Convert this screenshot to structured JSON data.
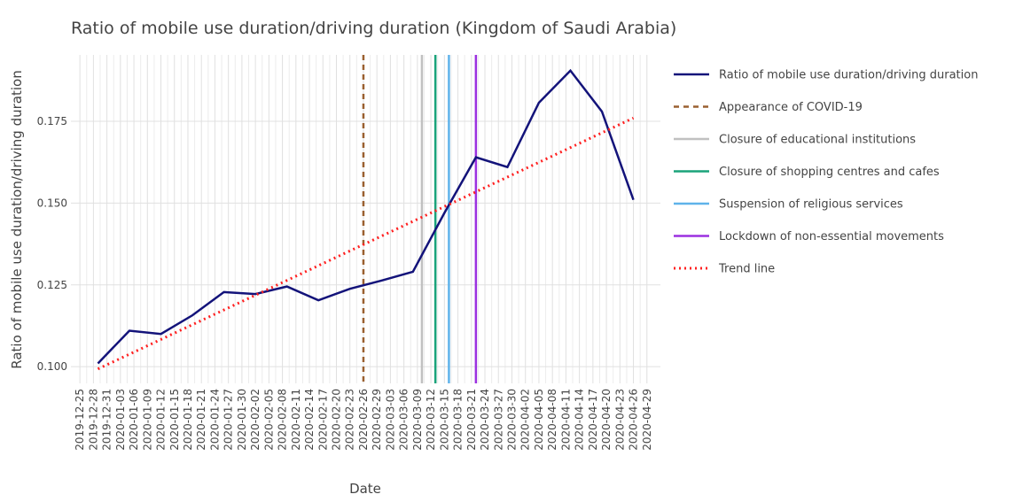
{
  "chart_data": {
    "type": "line",
    "title": "Ratio of mobile use duration/driving duration (Kingdom of Saudi Arabia)",
    "x_label": "Date",
    "y_label": "Ratio of mobile use duration/driving duration",
    "x": [
      "2019-12-29",
      "2020-01-05",
      "2020-01-12",
      "2020-01-19",
      "2020-01-26",
      "2020-02-02",
      "2020-02-09",
      "2020-02-16",
      "2020-02-23",
      "2020-03-01",
      "2020-03-08",
      "2020-03-15",
      "2020-03-22",
      "2020-03-29",
      "2020-04-05",
      "2020-04-12",
      "2020-04-19",
      "2020-04-26"
    ],
    "series": [
      {
        "name": "Ratio of mobile use duration/driving duration",
        "color": "#13137a",
        "dash": "solid",
        "values": [
          0.101,
          0.111,
          0.11,
          0.1157,
          0.1228,
          0.1222,
          0.1245,
          0.1203,
          0.1238,
          0.1263,
          0.129,
          0.147,
          0.164,
          0.161,
          0.1807,
          0.1905,
          0.178,
          0.151
        ]
      },
      {
        "name": "Trend line",
        "color": "#ff2020",
        "dash": "dot",
        "x": [
          "2019-12-29",
          "2020-04-26"
        ],
        "values": [
          0.0993,
          0.176
        ]
      }
    ],
    "events": [
      {
        "name": "Appearance of COVID-19",
        "x": "2020-02-26",
        "color": "#9a6030",
        "dash": "dash"
      },
      {
        "name": "Closure of educational institutions",
        "x": "2020-03-10",
        "color": "#c0c0c0",
        "dash": "solid"
      },
      {
        "name": "Closure of shopping centres and cafes",
        "x": "2020-03-13",
        "color": "#1aa37a",
        "dash": "solid"
      },
      {
        "name": "Suspension of religious services",
        "x": "2020-03-16",
        "color": "#5fb3ea",
        "dash": "solid"
      },
      {
        "name": "Lockdown of non-essential movements",
        "x": "2020-03-22",
        "color": "#9b30e0",
        "dash": "solid"
      }
    ],
    "legend_order": [
      "series.0",
      "events.0",
      "events.1",
      "events.2",
      "events.3",
      "events.4",
      "series.1"
    ],
    "xlim": [
      "2019-12-23",
      "2020-05-02"
    ],
    "xticks": [
      "2019-12-25",
      "2019-12-28",
      "2019-12-31",
      "2020-01-03",
      "2020-01-06",
      "2020-01-09",
      "2020-01-12",
      "2020-01-15",
      "2020-01-18",
      "2020-01-21",
      "2020-01-24",
      "2020-01-27",
      "2020-01-30",
      "2020-02-02",
      "2020-02-05",
      "2020-02-08",
      "2020-02-11",
      "2020-02-14",
      "2020-02-17",
      "2020-02-20",
      "2020-02-23",
      "2020-02-26",
      "2020-02-29",
      "2020-03-03",
      "2020-03-06",
      "2020-03-09",
      "2020-03-12",
      "2020-03-15",
      "2020-03-18",
      "2020-03-21",
      "2020-03-24",
      "2020-03-27",
      "2020-03-30",
      "2020-04-02",
      "2020-04-05",
      "2020-04-08",
      "2020-04-11",
      "2020-04-14",
      "2020-04-17",
      "2020-04-20",
      "2020-04-23",
      "2020-04-26",
      "2020-04-29"
    ],
    "ylim": [
      0.0949,
      0.1953
    ],
    "yticks": [
      {
        "value": 0.1,
        "label": "0.100"
      },
      {
        "value": 0.125,
        "label": "0.125"
      },
      {
        "value": 0.15,
        "label": "0.150"
      },
      {
        "value": 0.175,
        "label": "0.175"
      }
    ],
    "grid": true,
    "legend": "right"
  }
}
